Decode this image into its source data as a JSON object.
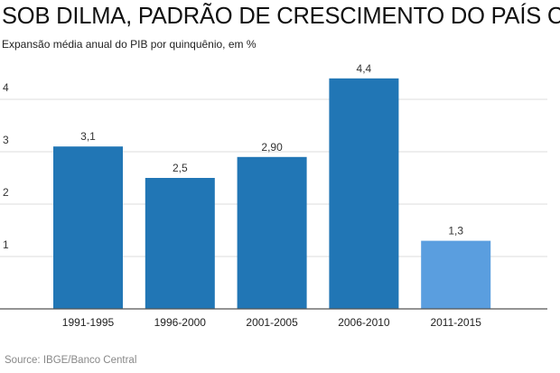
{
  "chart_data": {
    "type": "bar",
    "title": "SOB DILMA, PADRÃO DE CRESCIMENTO DO PAÍS CAI",
    "subtitle": "Expansão média anual do PIB por quinquênio, em %",
    "source": "Source: IBGE/Banco Central",
    "categories": [
      "1991-1995",
      "1996-2000",
      "2001-2005",
      "2006-2010",
      "2011-2015"
    ],
    "values": [
      3.1,
      2.5,
      2.9,
      4.4,
      1.3
    ],
    "data_labels": [
      "3,1",
      "2,5",
      "2,90",
      "4,4",
      "1,3"
    ],
    "colors": [
      "#2176b5",
      "#2176b5",
      "#2176b5",
      "#2176b5",
      "#5a9edf"
    ],
    "yticks": [
      1,
      2,
      3,
      4
    ],
    "ylim": [
      0,
      4.6
    ],
    "grid": true,
    "xlabel": "",
    "ylabel": ""
  }
}
